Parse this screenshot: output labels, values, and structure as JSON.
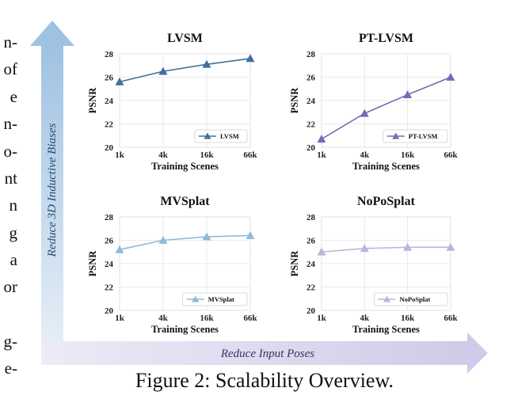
{
  "left_column_fragments": [
    "n-",
    "of",
    "e",
    "n-",
    "o-",
    "nt",
    "n",
    "g",
    "a",
    "or",
    "",
    "g-",
    "e-"
  ],
  "axes": {
    "vertical_label": "Reduce 3D Inductive Biases",
    "horizontal_label": "Reduce Input Poses"
  },
  "caption": "Figure 2: Scalability Overview.",
  "chart_data": [
    {
      "type": "line",
      "title": "LVSM",
      "xlabel": "Training Scenes",
      "ylabel": "PSNR",
      "categories": [
        "1k",
        "4k",
        "16k",
        "66k"
      ],
      "ylim": [
        20,
        28
      ],
      "yticks": [
        20,
        22,
        24,
        26,
        28
      ],
      "grid": true,
      "legend_position": "bottom-right",
      "color": "#3e6fa0",
      "series": [
        {
          "name": "LVSM",
          "values": [
            25.6,
            26.5,
            27.1,
            27.6
          ]
        }
      ]
    },
    {
      "type": "line",
      "title": "PT-LVSM",
      "xlabel": "Training Scenes",
      "ylabel": "PSNR",
      "categories": [
        "1k",
        "4k",
        "16k",
        "66k"
      ],
      "ylim": [
        20,
        28
      ],
      "yticks": [
        20,
        22,
        24,
        26,
        28
      ],
      "grid": true,
      "legend_position": "bottom-right",
      "color": "#7b68b5",
      "series": [
        {
          "name": "PT-LVSM",
          "values": [
            20.7,
            22.9,
            24.5,
            26.0
          ]
        }
      ]
    },
    {
      "type": "line",
      "title": "MVSplat",
      "xlabel": "Training Scenes",
      "ylabel": "PSNR",
      "categories": [
        "1k",
        "4k",
        "16k",
        "66k"
      ],
      "ylim": [
        20,
        28
      ],
      "yticks": [
        20,
        22,
        24,
        26,
        28
      ],
      "grid": true,
      "legend_position": "bottom-right",
      "color": "#8fbcd6",
      "series": [
        {
          "name": "MVSplat",
          "values": [
            25.2,
            26.0,
            26.3,
            26.4
          ]
        }
      ]
    },
    {
      "type": "line",
      "title": "NoPoSplat",
      "xlabel": "Training Scenes",
      "ylabel": "PSNR",
      "categories": [
        "1k",
        "4k",
        "16k",
        "66k"
      ],
      "ylim": [
        20,
        28
      ],
      "yticks": [
        20,
        22,
        24,
        26,
        28
      ],
      "grid": true,
      "legend_position": "bottom-right",
      "color": "#b9b5dd",
      "series": [
        {
          "name": "NoPoSplat",
          "values": [
            25.0,
            25.3,
            25.4,
            25.4
          ]
        }
      ]
    }
  ]
}
